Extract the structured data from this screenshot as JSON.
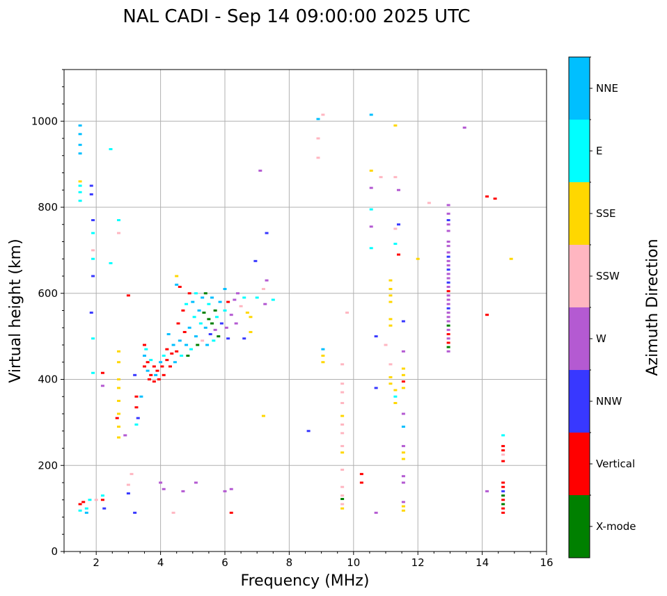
{
  "chart_data": {
    "type": "scatter",
    "title": "NAL CADI - Sep 14 09:00:00 2025 UTC",
    "xlabel": "Frequency (MHz)",
    "ylabel": "Virtual height (km)",
    "xlim": [
      1,
      16
    ],
    "ylim": [
      0,
      1120
    ],
    "xticks": [
      2,
      4,
      6,
      8,
      10,
      12,
      14,
      16
    ],
    "yticks": [
      0,
      200,
      400,
      600,
      800,
      1000
    ],
    "grid": true,
    "colorbar": {
      "label": "Azimuth Direction",
      "categories": [
        "X-mode",
        "Vertical",
        "NNW",
        "W",
        "SSW",
        "SSE",
        "E",
        "NNE"
      ],
      "colors": [
        "#008000",
        "#ff0000",
        "#3838ff",
        "#b45ad2",
        "#ffb6c1",
        "#ffd700",
        "#00ffff",
        "#00bfff"
      ]
    },
    "points_format": "[frequency_MHz, virtual_height_km, direction_index]",
    "points": [
      [
        1.5,
        990,
        7
      ],
      [
        1.5,
        970,
        7
      ],
      [
        1.5,
        945,
        7
      ],
      [
        1.5,
        925,
        7
      ],
      [
        1.5,
        860,
        5
      ],
      [
        1.5,
        850,
        6
      ],
      [
        1.5,
        835,
        6
      ],
      [
        1.5,
        815,
        6
      ],
      [
        1.5,
        110,
        1
      ],
      [
        1.5,
        95,
        6
      ],
      [
        1.6,
        115,
        1
      ],
      [
        1.7,
        100,
        6
      ],
      [
        1.8,
        120,
        6
      ],
      [
        1.7,
        90,
        7
      ],
      [
        1.85,
        850,
        2
      ],
      [
        1.85,
        830,
        2
      ],
      [
        1.9,
        770,
        2
      ],
      [
        1.9,
        740,
        6
      ],
      [
        1.9,
        700,
        4
      ],
      [
        1.9,
        680,
        6
      ],
      [
        1.9,
        640,
        2
      ],
      [
        1.85,
        555,
        2
      ],
      [
        1.9,
        495,
        6
      ],
      [
        1.9,
        415,
        6
      ],
      [
        2.0,
        120,
        4
      ],
      [
        2.2,
        130,
        6
      ],
      [
        2.2,
        120,
        1
      ],
      [
        2.2,
        415,
        1
      ],
      [
        2.25,
        100,
        2
      ],
      [
        2.2,
        385,
        3
      ],
      [
        2.45,
        935,
        6
      ],
      [
        2.45,
        670,
        6
      ],
      [
        2.7,
        770,
        6
      ],
      [
        2.7,
        740,
        4
      ],
      [
        2.7,
        465,
        5
      ],
      [
        2.7,
        440,
        5
      ],
      [
        2.7,
        400,
        5
      ],
      [
        2.7,
        380,
        5
      ],
      [
        2.7,
        350,
        5
      ],
      [
        2.7,
        320,
        5
      ],
      [
        2.7,
        290,
        5
      ],
      [
        2.7,
        265,
        5
      ],
      [
        2.65,
        310,
        1
      ],
      [
        2.9,
        270,
        3
      ],
      [
        3.0,
        595,
        1
      ],
      [
        3.0,
        155,
        4
      ],
      [
        3.0,
        135,
        2
      ],
      [
        3.1,
        180,
        4
      ],
      [
        3.2,
        410,
        2
      ],
      [
        3.25,
        360,
        1
      ],
      [
        3.25,
        335,
        1
      ],
      [
        3.3,
        310,
        2
      ],
      [
        3.25,
        295,
        6
      ],
      [
        3.2,
        90,
        2
      ],
      [
        3.4,
        360,
        7
      ],
      [
        3.5,
        480,
        1
      ],
      [
        3.55,
        470,
        6
      ],
      [
        3.5,
        455,
        7
      ],
      [
        3.6,
        440,
        1
      ],
      [
        3.5,
        430,
        1
      ],
      [
        3.6,
        420,
        7
      ],
      [
        3.7,
        410,
        1
      ],
      [
        3.65,
        400,
        1
      ],
      [
        3.7,
        445,
        6
      ],
      [
        3.8,
        430,
        1
      ],
      [
        3.8,
        395,
        1
      ],
      [
        3.85,
        410,
        7
      ],
      [
        3.9,
        420,
        1
      ],
      [
        3.95,
        400,
        1
      ],
      [
        4.0,
        440,
        7
      ],
      [
        4.05,
        430,
        1
      ],
      [
        4.1,
        410,
        1
      ],
      [
        4.1,
        455,
        6
      ],
      [
        4.2,
        445,
        1
      ],
      [
        4.2,
        470,
        1
      ],
      [
        4.25,
        505,
        7
      ],
      [
        4.3,
        430,
        1
      ],
      [
        4.35,
        460,
        1
      ],
      [
        4.4,
        480,
        7
      ],
      [
        4.45,
        440,
        7
      ],
      [
        4.5,
        465,
        1
      ],
      [
        4.5,
        640,
        5
      ],
      [
        4.5,
        620,
        7
      ],
      [
        4.6,
        615,
        1
      ],
      [
        4.55,
        530,
        1
      ],
      [
        4.6,
        490,
        7
      ],
      [
        4.65,
        455,
        6
      ],
      [
        4.7,
        560,
        1
      ],
      [
        4.75,
        510,
        1
      ],
      [
        4.8,
        575,
        6
      ],
      [
        4.8,
        480,
        7
      ],
      [
        4.85,
        455,
        0
      ],
      [
        4.9,
        600,
        1
      ],
      [
        4.9,
        520,
        7
      ],
      [
        4.95,
        470,
        6
      ],
      [
        5.0,
        580,
        7
      ],
      [
        5.05,
        545,
        6
      ],
      [
        5.1,
        500,
        7
      ],
      [
        5.1,
        600,
        6
      ],
      [
        5.15,
        480,
        0
      ],
      [
        5.2,
        560,
        7
      ],
      [
        5.25,
        530,
        6
      ],
      [
        5.3,
        590,
        7
      ],
      [
        5.3,
        490,
        4
      ],
      [
        5.35,
        555,
        0
      ],
      [
        5.4,
        520,
        7
      ],
      [
        5.4,
        600,
        0
      ],
      [
        5.45,
        480,
        7
      ],
      [
        5.5,
        575,
        6
      ],
      [
        5.5,
        540,
        0
      ],
      [
        5.55,
        505,
        2
      ],
      [
        5.6,
        590,
        7
      ],
      [
        5.6,
        530,
        0
      ],
      [
        5.65,
        490,
        6
      ],
      [
        5.7,
        560,
        0
      ],
      [
        5.7,
        515,
        3
      ],
      [
        5.75,
        545,
        6
      ],
      [
        5.8,
        500,
        0
      ],
      [
        5.85,
        580,
        7
      ],
      [
        5.9,
        530,
        2
      ],
      [
        6.0,
        610,
        7
      ],
      [
        6.0,
        560,
        6
      ],
      [
        6.05,
        520,
        3
      ],
      [
        6.1,
        495,
        2
      ],
      [
        6.1,
        580,
        1
      ],
      [
        6.2,
        550,
        3
      ],
      [
        6.3,
        585,
        3
      ],
      [
        6.35,
        530,
        3
      ],
      [
        6.4,
        600,
        3
      ],
      [
        6.5,
        570,
        4
      ],
      [
        6.6,
        590,
        6
      ],
      [
        6.7,
        555,
        5
      ],
      [
        6.8,
        545,
        5
      ],
      [
        6.8,
        510,
        5
      ],
      [
        6.6,
        495,
        2
      ],
      [
        6.95,
        675,
        2
      ],
      [
        7.0,
        590,
        6
      ],
      [
        7.1,
        885,
        3
      ],
      [
        7.2,
        610,
        4
      ],
      [
        7.25,
        575,
        3
      ],
      [
        7.3,
        740,
        2
      ],
      [
        7.3,
        630,
        3
      ],
      [
        7.5,
        585,
        6
      ],
      [
        7.2,
        315,
        5
      ],
      [
        4.0,
        160,
        3
      ],
      [
        4.1,
        145,
        3
      ],
      [
        4.4,
        90,
        4
      ],
      [
        4.7,
        140,
        3
      ],
      [
        5.1,
        160,
        3
      ],
      [
        6.0,
        140,
        3
      ],
      [
        6.2,
        145,
        3
      ],
      [
        6.2,
        90,
        1
      ],
      [
        8.6,
        280,
        2
      ],
      [
        8.9,
        1005,
        7
      ],
      [
        8.9,
        960,
        4
      ],
      [
        8.9,
        915,
        4
      ],
      [
        9.05,
        1015,
        4
      ],
      [
        9.05,
        470,
        7
      ],
      [
        9.05,
        455,
        5
      ],
      [
        9.05,
        440,
        5
      ],
      [
        9.8,
        555,
        4
      ],
      [
        9.65,
        435,
        4
      ],
      [
        9.65,
        390,
        4
      ],
      [
        9.65,
        370,
        4
      ],
      [
        9.65,
        345,
        4
      ],
      [
        9.65,
        315,
        5
      ],
      [
        9.65,
        295,
        4
      ],
      [
        9.65,
        275,
        4
      ],
      [
        9.65,
        245,
        4
      ],
      [
        9.65,
        230,
        5
      ],
      [
        9.65,
        190,
        4
      ],
      [
        9.65,
        150,
        4
      ],
      [
        9.65,
        130,
        4
      ],
      [
        9.65,
        122,
        0
      ],
      [
        9.65,
        110,
        4
      ],
      [
        9.65,
        100,
        5
      ],
      [
        10.25,
        180,
        1
      ],
      [
        10.25,
        160,
        1
      ],
      [
        10.55,
        1015,
        7
      ],
      [
        10.55,
        885,
        5
      ],
      [
        10.55,
        845,
        3
      ],
      [
        10.55,
        795,
        6
      ],
      [
        10.55,
        755,
        3
      ],
      [
        10.55,
        705,
        6
      ],
      [
        10.7,
        500,
        2
      ],
      [
        10.7,
        380,
        2
      ],
      [
        10.7,
        90,
        3
      ],
      [
        10.85,
        870,
        4
      ],
      [
        11.0,
        480,
        4
      ],
      [
        11.15,
        630,
        5
      ],
      [
        11.15,
        610,
        5
      ],
      [
        11.15,
        595,
        5
      ],
      [
        11.15,
        580,
        5
      ],
      [
        11.15,
        540,
        5
      ],
      [
        11.15,
        525,
        5
      ],
      [
        11.15,
        435,
        4
      ],
      [
        11.15,
        405,
        5
      ],
      [
        11.15,
        390,
        5
      ],
      [
        11.3,
        990,
        5
      ],
      [
        11.3,
        870,
        4
      ],
      [
        11.3,
        750,
        4
      ],
      [
        11.3,
        715,
        6
      ],
      [
        11.3,
        375,
        5
      ],
      [
        11.3,
        360,
        6
      ],
      [
        11.3,
        345,
        5
      ],
      [
        11.4,
        840,
        3
      ],
      [
        11.4,
        760,
        2
      ],
      [
        11.4,
        690,
        1
      ],
      [
        11.55,
        535,
        2
      ],
      [
        11.55,
        465,
        3
      ],
      [
        11.55,
        425,
        5
      ],
      [
        11.55,
        410,
        5
      ],
      [
        11.55,
        395,
        1
      ],
      [
        11.55,
        380,
        5
      ],
      [
        11.55,
        320,
        3
      ],
      [
        11.55,
        290,
        7
      ],
      [
        11.55,
        245,
        3
      ],
      [
        11.55,
        230,
        5
      ],
      [
        11.55,
        215,
        5
      ],
      [
        11.55,
        175,
        3
      ],
      [
        11.55,
        160,
        3
      ],
      [
        11.55,
        115,
        3
      ],
      [
        11.55,
        105,
        5
      ],
      [
        11.55,
        95,
        5
      ],
      [
        12.0,
        680,
        5
      ],
      [
        12.35,
        810,
        4
      ],
      [
        12.95,
        805,
        3
      ],
      [
        12.95,
        785,
        3
      ],
      [
        12.95,
        770,
        2
      ],
      [
        12.95,
        760,
        3
      ],
      [
        12.95,
        745,
        3
      ],
      [
        12.95,
        720,
        3
      ],
      [
        12.95,
        710,
        3
      ],
      [
        12.95,
        695,
        3
      ],
      [
        12.95,
        685,
        2
      ],
      [
        12.95,
        675,
        3
      ],
      [
        12.95,
        665,
        3
      ],
      [
        12.95,
        655,
        2
      ],
      [
        12.95,
        645,
        3
      ],
      [
        12.95,
        635,
        3
      ],
      [
        12.95,
        625,
        2
      ],
      [
        12.95,
        615,
        3
      ],
      [
        12.95,
        605,
        1
      ],
      [
        12.95,
        595,
        3
      ],
      [
        12.95,
        585,
        3
      ],
      [
        12.95,
        575,
        3
      ],
      [
        12.95,
        565,
        2
      ],
      [
        12.95,
        555,
        3
      ],
      [
        12.95,
        545,
        3
      ],
      [
        12.95,
        535,
        3
      ],
      [
        12.95,
        525,
        0
      ],
      [
        12.95,
        515,
        3
      ],
      [
        12.95,
        505,
        1
      ],
      [
        12.95,
        495,
        3
      ],
      [
        12.95,
        485,
        1
      ],
      [
        12.95,
        475,
        0
      ],
      [
        12.95,
        465,
        3
      ],
      [
        13.45,
        985,
        3
      ],
      [
        14.15,
        825,
        1
      ],
      [
        14.4,
        820,
        1
      ],
      [
        14.15,
        550,
        1
      ],
      [
        14.15,
        140,
        3
      ],
      [
        14.9,
        680,
        5
      ],
      [
        14.65,
        270,
        6
      ],
      [
        14.65,
        245,
        1
      ],
      [
        14.65,
        235,
        1
      ],
      [
        14.65,
        225,
        4
      ],
      [
        14.65,
        210,
        1
      ],
      [
        14.65,
        160,
        1
      ],
      [
        14.65,
        150,
        1
      ],
      [
        14.65,
        140,
        2
      ],
      [
        14.65,
        130,
        0
      ],
      [
        14.65,
        120,
        1
      ],
      [
        14.65,
        110,
        0
      ],
      [
        14.65,
        100,
        1
      ],
      [
        14.65,
        90,
        1
      ]
    ]
  }
}
